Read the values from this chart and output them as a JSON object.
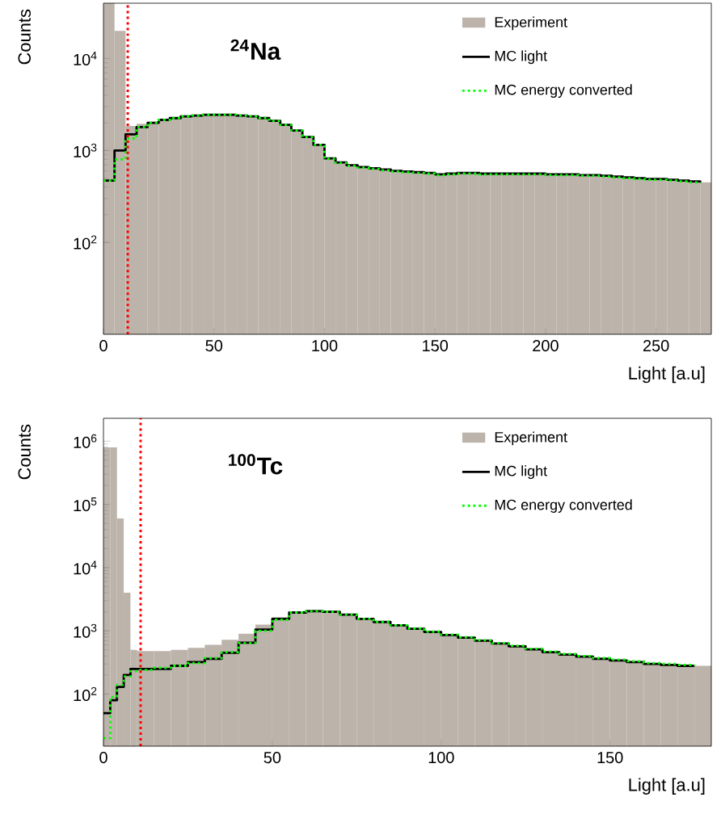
{
  "chart_data": [
    {
      "type": "histogram",
      "title": "$^{24}$Na",
      "xlabel": "Light [a.u]",
      "ylabel": "Counts",
      "log": "y",
      "legend": "top right",
      "xlim": [
        0,
        275
      ],
      "ylim": [
        10,
        40000
      ],
      "xticks": [
        0,
        50,
        100,
        150,
        200,
        250
      ],
      "yticks": [
        {
          "value": 100,
          "label": "10$^{2}$"
        },
        {
          "value": 1000,
          "label": "10$^{3}$"
        },
        {
          "value": 10000,
          "label": "10$^{4}$"
        }
      ],
      "bins": [
        0,
        5,
        10,
        15,
        20,
        25,
        30,
        35,
        40,
        45,
        50,
        55,
        60,
        65,
        70,
        75,
        80,
        85,
        90,
        95,
        100,
        105,
        110,
        115,
        120,
        125,
        130,
        135,
        140,
        145,
        150,
        155,
        160,
        165,
        170,
        175,
        180,
        185,
        190,
        195,
        200,
        205,
        210,
        215,
        220,
        225,
        230,
        235,
        240,
        245,
        250,
        255,
        260,
        265,
        270,
        275
      ],
      "series": [
        {
          "name": "Experiment",
          "color": "#bcb3aa",
          "values": [
            40000,
            20000,
            1850,
            1950,
            2050,
            2150,
            2250,
            2350,
            2400,
            2450,
            2450,
            2450,
            2400,
            2350,
            2250,
            2100,
            1900,
            1650,
            1400,
            1150,
            820,
            740,
            690,
            660,
            640,
            620,
            600,
            590,
            580,
            570,
            550,
            560,
            570,
            570,
            560,
            560,
            560,
            560,
            560,
            560,
            550,
            550,
            550,
            540,
            540,
            530,
            520,
            510,
            500,
            490,
            490,
            480,
            470,
            460,
            450
          ]
        },
        {
          "name": "MC light",
          "type": "step",
          "line_style": "solid",
          "color": "#000000",
          "x": [
            0,
            5,
            10,
            15,
            20,
            25,
            30,
            35,
            40,
            45,
            50,
            55,
            60,
            65,
            70,
            75,
            80,
            85,
            90,
            95,
            100,
            105,
            110,
            115,
            120,
            125,
            130,
            135,
            140,
            145,
            150,
            155,
            160,
            165,
            170,
            175,
            180,
            185,
            190,
            195,
            200,
            205,
            210,
            215,
            220,
            225,
            230,
            235,
            240,
            245,
            250,
            255,
            260,
            265,
            270
          ],
          "values": [
            470,
            1000,
            1500,
            1800,
            2000,
            2150,
            2250,
            2350,
            2400,
            2450,
            2450,
            2450,
            2400,
            2350,
            2250,
            2100,
            1900,
            1650,
            1400,
            1150,
            820,
            740,
            690,
            660,
            640,
            620,
            600,
            590,
            580,
            570,
            550,
            560,
            570,
            570,
            560,
            560,
            560,
            560,
            560,
            560,
            550,
            550,
            550,
            540,
            540,
            530,
            520,
            510,
            500,
            490,
            490,
            480,
            470,
            460,
            450
          ]
        },
        {
          "name": "MC energy converted",
          "type": "step",
          "line_style": "dotted",
          "color": "#00ff00",
          "x": [
            0,
            5,
            10,
            15,
            20,
            25,
            30,
            35,
            40,
            45,
            50,
            55,
            60,
            65,
            70,
            75,
            80,
            85,
            90,
            95,
            100,
            105,
            110,
            115,
            120,
            125,
            130,
            135,
            140,
            145,
            150,
            155,
            160,
            165,
            170,
            175,
            180,
            185,
            190,
            195,
            200,
            205,
            210,
            215,
            220,
            225,
            230,
            235,
            240,
            245,
            250,
            255,
            260,
            265,
            270
          ],
          "values": [
            470,
            800,
            1350,
            1800,
            2000,
            2150,
            2250,
            2350,
            2400,
            2450,
            2450,
            2450,
            2400,
            2350,
            2250,
            2100,
            1900,
            1650,
            1400,
            1150,
            810,
            730,
            680,
            650,
            630,
            610,
            590,
            580,
            570,
            560,
            540,
            550,
            560,
            560,
            550,
            550,
            550,
            550,
            550,
            550,
            540,
            540,
            540,
            530,
            530,
            520,
            510,
            500,
            490,
            480,
            480,
            470,
            460,
            450,
            440
          ]
        }
      ],
      "ref_lines": [
        {
          "axis": "x",
          "value": 11,
          "color": "#ff0000",
          "line_style": "dotted"
        }
      ]
    },
    {
      "type": "histogram",
      "title": "$^{100}$Tc",
      "xlabel": "Light [a.u]",
      "ylabel": "Counts",
      "log": "y",
      "legend": "top right",
      "xlim": [
        0,
        180
      ],
      "ylim": [
        15,
        2300000
      ],
      "xticks": [
        0,
        50,
        100,
        150
      ],
      "yticks": [
        {
          "value": 100,
          "label": "10$^{2}$"
        },
        {
          "value": 1000,
          "label": "10$^{3}$"
        },
        {
          "value": 10000,
          "label": "10$^{4}$"
        },
        {
          "value": 100000,
          "label": "10$^{5}$"
        },
        {
          "value": 1000000,
          "label": "10$^{6}$"
        }
      ],
      "bins": [
        0,
        2,
        4,
        6,
        8,
        10,
        15,
        20,
        25,
        30,
        35,
        40,
        45,
        50,
        55,
        60,
        65,
        70,
        75,
        80,
        85,
        90,
        95,
        100,
        105,
        110,
        115,
        120,
        125,
        130,
        135,
        140,
        145,
        150,
        155,
        160,
        165,
        170,
        175,
        180
      ],
      "series": [
        {
          "name": "Experiment",
          "color": "#bcb3aa",
          "values": [
            800000,
            800000,
            60000,
            4000,
            500,
            480,
            480,
            500,
            540,
            600,
            720,
            900,
            1250,
            1650,
            2000,
            2150,
            2100,
            1850,
            1600,
            1400,
            1250,
            1100,
            980,
            880,
            790,
            720,
            640,
            580,
            520,
            470,
            430,
            400,
            380,
            350,
            330,
            310,
            300,
            290,
            280
          ]
        },
        {
          "name": "MC light",
          "type": "step",
          "line_style": "solid",
          "color": "#000000",
          "x": [
            0,
            2,
            4,
            6,
            8,
            10,
            15,
            20,
            25,
            30,
            35,
            40,
            45,
            50,
            55,
            60,
            65,
            70,
            75,
            80,
            85,
            90,
            95,
            100,
            105,
            110,
            115,
            120,
            125,
            130,
            135,
            140,
            145,
            150,
            155,
            160,
            165,
            170,
            175
          ],
          "values": [
            50,
            80,
            130,
            200,
            250,
            250,
            250,
            280,
            320,
            360,
            450,
            650,
            1050,
            1550,
            1950,
            2050,
            2000,
            1800,
            1550,
            1380,
            1220,
            1080,
            960,
            860,
            780,
            700,
            630,
            570,
            510,
            460,
            420,
            390,
            360,
            340,
            320,
            300,
            290,
            280,
            280
          ]
        },
        {
          "name": "MC energy converted",
          "type": "step",
          "line_style": "dotted",
          "color": "#00ff00",
          "x": [
            0,
            2,
            4,
            6,
            8,
            10,
            15,
            20,
            25,
            30,
            35,
            40,
            45,
            50,
            55,
            60,
            65,
            70,
            75,
            80,
            85,
            90,
            95,
            100,
            105,
            110,
            115,
            120,
            125,
            130,
            135,
            140,
            145,
            150,
            155,
            160,
            165,
            170,
            175
          ],
          "values": [
            20,
            90,
            140,
            190,
            230,
            240,
            260,
            280,
            310,
            370,
            460,
            640,
            1000,
            1500,
            1950,
            2050,
            2000,
            1800,
            1550,
            1380,
            1220,
            1090,
            970,
            870,
            790,
            710,
            640,
            580,
            520,
            470,
            430,
            400,
            370,
            350,
            330,
            310,
            300,
            290,
            280
          ]
        }
      ],
      "ref_lines": [
        {
          "axis": "x",
          "value": 11,
          "color": "#ff0000",
          "line_style": "dotted"
        }
      ]
    }
  ]
}
